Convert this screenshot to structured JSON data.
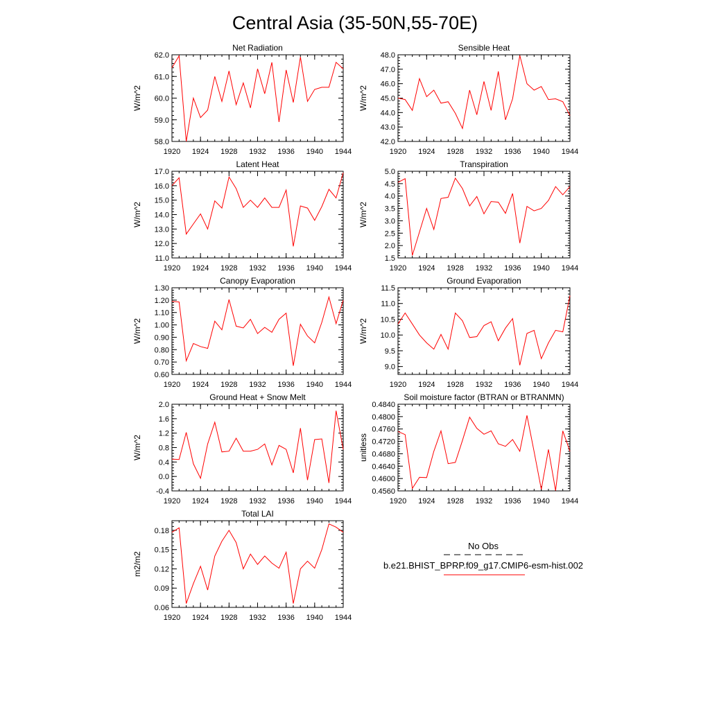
{
  "figure": {
    "title": "Central Asia (35-50N,55-70E)"
  },
  "legend": {
    "obs_label": "No Obs",
    "model_label": "b.e21.BHIST_BPRP.f09_g17.CMIP6-esm-hist.002",
    "obs_color": "#000000",
    "model_color": "#ff0000"
  },
  "colors": {
    "series": "#ff0000",
    "axis": "#000000"
  },
  "chart_data": [
    {
      "type": "line",
      "title": "Net Radiation",
      "ylabel": "W/m^2",
      "xlim": [
        1920,
        1944
      ],
      "ylim": [
        58.0,
        62.0
      ],
      "xticks": [
        1920,
        1924,
        1928,
        1932,
        1936,
        1940,
        1944
      ],
      "xtick_labels": [
        "1920",
        "1924",
        "1928",
        "1932",
        "1936",
        "1940",
        "1944"
      ],
      "yticks": [
        58.0,
        59.0,
        60.0,
        61.0,
        62.0
      ],
      "ytick_labels": [
        "58.0",
        "59.0",
        "60.0",
        "61.0",
        "62.0"
      ],
      "x": [
        1920,
        1921,
        1922,
        1923,
        1924,
        1925,
        1926,
        1927,
        1928,
        1929,
        1930,
        1931,
        1932,
        1933,
        1934,
        1935,
        1936,
        1937,
        1938,
        1939,
        1940,
        1941,
        1942,
        1943,
        1944
      ],
      "series": [
        {
          "values": [
            61.4,
            61.95,
            58.0,
            60.0,
            59.1,
            59.45,
            61.0,
            59.85,
            61.25,
            59.7,
            60.7,
            59.55,
            61.35,
            60.2,
            61.65,
            58.9,
            61.3,
            59.8,
            61.9,
            59.85,
            60.4,
            60.5,
            60.5,
            61.65,
            61.35
          ]
        }
      ]
    },
    {
      "type": "line",
      "title": "Sensible Heat",
      "ylabel": "W/m^2",
      "xlim": [
        1920,
        1944
      ],
      "ylim": [
        42.0,
        48.0
      ],
      "xticks": [
        1920,
        1924,
        1928,
        1932,
        1936,
        1940,
        1944
      ],
      "xtick_labels": [
        "1920",
        "1924",
        "1928",
        "1932",
        "1936",
        "1940",
        "1944"
      ],
      "yticks": [
        42.0,
        43.0,
        44.0,
        45.0,
        46.0,
        47.0,
        48.0
      ],
      "ytick_labels": [
        "42.0",
        "43.0",
        "44.0",
        "45.0",
        "46.0",
        "47.0",
        "48.0"
      ],
      "x": [
        1920,
        1921,
        1922,
        1923,
        1924,
        1925,
        1926,
        1927,
        1928,
        1929,
        1930,
        1931,
        1932,
        1933,
        1934,
        1935,
        1936,
        1937,
        1938,
        1939,
        1940,
        1941,
        1942,
        1943,
        1944
      ],
      "series": [
        {
          "values": [
            45.0,
            44.9,
            44.15,
            46.35,
            45.1,
            45.55,
            44.65,
            44.75,
            43.95,
            42.9,
            45.55,
            43.85,
            46.15,
            44.15,
            46.85,
            43.5,
            44.95,
            47.95,
            46.0,
            45.55,
            45.8,
            44.9,
            44.95,
            44.75,
            43.8
          ]
        }
      ]
    },
    {
      "type": "line",
      "title": "Latent Heat",
      "ylabel": "W/m^2",
      "xlim": [
        1920,
        1944
      ],
      "ylim": [
        11.0,
        17.0
      ],
      "xticks": [
        1920,
        1924,
        1928,
        1932,
        1936,
        1940,
        1944
      ],
      "xtick_labels": [
        "1920",
        "1924",
        "1928",
        "1932",
        "1936",
        "1940",
        "1944"
      ],
      "yticks": [
        11.0,
        12.0,
        13.0,
        14.0,
        15.0,
        16.0,
        17.0
      ],
      "ytick_labels": [
        "11.0",
        "12.0",
        "13.0",
        "14.0",
        "15.0",
        "16.0",
        "17.0"
      ],
      "x": [
        1920,
        1921,
        1922,
        1923,
        1924,
        1925,
        1926,
        1927,
        1928,
        1929,
        1930,
        1931,
        1932,
        1933,
        1934,
        1935,
        1936,
        1937,
        1938,
        1939,
        1940,
        1941,
        1942,
        1943,
        1944
      ],
      "series": [
        {
          "values": [
            16.0,
            16.55,
            12.65,
            13.35,
            14.05,
            13.0,
            14.95,
            14.45,
            16.6,
            15.8,
            14.5,
            15.0,
            14.5,
            15.15,
            14.5,
            14.5,
            15.7,
            11.8,
            14.6,
            14.45,
            13.6,
            14.55,
            15.75,
            15.15,
            16.9
          ]
        }
      ]
    },
    {
      "type": "line",
      "title": "Transpiration",
      "ylabel": "W/m^2",
      "xlim": [
        1920,
        1944
      ],
      "ylim": [
        1.5,
        5.0
      ],
      "xticks": [
        1920,
        1924,
        1928,
        1932,
        1936,
        1940,
        1944
      ],
      "xtick_labels": [
        "1920",
        "1924",
        "1928",
        "1932",
        "1936",
        "1940",
        "1944"
      ],
      "yticks": [
        1.5,
        2.0,
        2.5,
        3.0,
        3.5,
        4.0,
        4.5,
        5.0
      ],
      "ytick_labels": [
        "1.5",
        "2.0",
        "2.5",
        "3.0",
        "3.5",
        "4.0",
        "4.5",
        "5.0"
      ],
      "x": [
        1920,
        1921,
        1922,
        1923,
        1924,
        1925,
        1926,
        1927,
        1928,
        1929,
        1930,
        1931,
        1932,
        1933,
        1934,
        1935,
        1936,
        1937,
        1938,
        1939,
        1940,
        1941,
        1942,
        1943,
        1944
      ],
      "series": [
        {
          "values": [
            4.55,
            4.7,
            1.6,
            2.55,
            3.5,
            2.65,
            3.9,
            3.95,
            4.72,
            4.3,
            3.6,
            3.98,
            3.28,
            3.78,
            3.75,
            3.3,
            4.1,
            2.1,
            3.58,
            3.4,
            3.5,
            3.82,
            4.38,
            4.05,
            4.38
          ]
        }
      ]
    },
    {
      "type": "line",
      "title": "Canopy Evaporation",
      "ylabel": "W/m^2",
      "xlim": [
        1920,
        1944
      ],
      "ylim": [
        0.6,
        1.3
      ],
      "xticks": [
        1920,
        1924,
        1928,
        1932,
        1936,
        1940,
        1944
      ],
      "xtick_labels": [
        "1920",
        "1924",
        "1928",
        "1932",
        "1936",
        "1940",
        "1944"
      ],
      "yticks": [
        0.6,
        0.7,
        0.8,
        0.9,
        1.0,
        1.1,
        1.2,
        1.3
      ],
      "ytick_labels": [
        "0.60",
        "0.70",
        "0.80",
        "0.90",
        "1.00",
        "1.10",
        "1.20",
        "1.30"
      ],
      "x": [
        1920,
        1921,
        1922,
        1923,
        1924,
        1925,
        1926,
        1927,
        1928,
        1929,
        1930,
        1931,
        1932,
        1933,
        1934,
        1935,
        1936,
        1937,
        1938,
        1939,
        1940,
        1941,
        1942,
        1943,
        1944
      ],
      "series": [
        {
          "values": [
            1.19,
            1.185,
            0.71,
            0.85,
            0.825,
            0.81,
            1.03,
            0.96,
            1.205,
            0.99,
            0.975,
            1.045,
            0.93,
            0.98,
            0.94,
            1.045,
            1.095,
            0.67,
            1.005,
            0.91,
            0.855,
            1.02,
            1.225,
            1.01,
            1.2
          ]
        }
      ]
    },
    {
      "type": "line",
      "title": "Ground Evaporation",
      "ylabel": "W/m^2",
      "xlim": [
        1920,
        1944
      ],
      "ylim": [
        8.75,
        11.5
      ],
      "xticks": [
        1920,
        1924,
        1928,
        1932,
        1936,
        1940,
        1944
      ],
      "xtick_labels": [
        "1920",
        "1924",
        "1928",
        "1932",
        "1936",
        "1940",
        "1944"
      ],
      "yticks": [
        9.0,
        9.5,
        10.0,
        10.5,
        11.0,
        11.5
      ],
      "ytick_labels": [
        "9.0",
        "9.5",
        "10.0",
        "10.5",
        "11.0",
        "11.5"
      ],
      "x": [
        1920,
        1921,
        1922,
        1923,
        1924,
        1925,
        1926,
        1927,
        1928,
        1929,
        1930,
        1931,
        1932,
        1933,
        1934,
        1935,
        1936,
        1937,
        1938,
        1939,
        1940,
        1941,
        1942,
        1943,
        1944
      ],
      "series": [
        {
          "values": [
            10.35,
            10.7,
            10.35,
            10.0,
            9.75,
            9.55,
            10.02,
            9.55,
            10.7,
            10.45,
            9.92,
            9.95,
            10.3,
            10.42,
            9.82,
            10.22,
            10.52,
            9.04,
            10.05,
            10.15,
            9.25,
            9.75,
            10.15,
            10.1,
            11.25
          ]
        }
      ]
    },
    {
      "type": "line",
      "title": "Ground Heat + Snow Melt",
      "ylabel": "W/m^2",
      "xlim": [
        1920,
        1944
      ],
      "ylim": [
        -0.4,
        2.0
      ],
      "xticks": [
        1920,
        1924,
        1928,
        1932,
        1936,
        1940,
        1944
      ],
      "xtick_labels": [
        "1920",
        "1924",
        "1928",
        "1932",
        "1936",
        "1940",
        "1944"
      ],
      "yticks": [
        -0.4,
        0.0,
        0.4,
        0.8,
        1.2,
        1.6,
        2.0
      ],
      "ytick_labels": [
        "-0.4",
        "0.0",
        "0.4",
        "0.8",
        "1.2",
        "1.6",
        "2.0"
      ],
      "x": [
        1920,
        1921,
        1922,
        1923,
        1924,
        1925,
        1926,
        1927,
        1928,
        1929,
        1930,
        1931,
        1932,
        1933,
        1934,
        1935,
        1936,
        1937,
        1938,
        1939,
        1940,
        1941,
        1942,
        1943,
        1944
      ],
      "series": [
        {
          "values": [
            0.48,
            0.47,
            1.22,
            0.35,
            -0.05,
            0.9,
            1.5,
            0.68,
            0.7,
            1.06,
            0.7,
            0.7,
            0.75,
            0.9,
            0.32,
            0.86,
            0.75,
            0.1,
            1.34,
            -0.1,
            1.02,
            1.04,
            -0.18,
            1.82,
            0.75
          ]
        }
      ]
    },
    {
      "type": "line",
      "title": "Soil moisture factor (BTRAN or BTRANMN)",
      "ylabel": "unitless",
      "xlim": [
        1920,
        1944
      ],
      "ylim": [
        0.456,
        0.484
      ],
      "xticks": [
        1920,
        1924,
        1928,
        1932,
        1936,
        1940,
        1944
      ],
      "xtick_labels": [
        "1920",
        "1924",
        "1928",
        "1932",
        "1936",
        "1940",
        "1944"
      ],
      "yticks": [
        0.456,
        0.46,
        0.464,
        0.468,
        0.472,
        0.476,
        0.48,
        0.484
      ],
      "ytick_labels": [
        "0.4560",
        "0.4600",
        "0.4640",
        "0.4680",
        "0.4720",
        "0.4760",
        "0.4800",
        "0.4840"
      ],
      "x": [
        1920,
        1921,
        1922,
        1923,
        1924,
        1925,
        1926,
        1927,
        1928,
        1929,
        1930,
        1931,
        1932,
        1933,
        1934,
        1935,
        1936,
        1937,
        1938,
        1939,
        1940,
        1941,
        1942,
        1943,
        1944
      ],
      "series": [
        {
          "values": [
            0.4752,
            0.4742,
            0.4568,
            0.4604,
            0.4603,
            0.4688,
            0.4754,
            0.4648,
            0.4652,
            0.4723,
            0.4798,
            0.4762,
            0.4743,
            0.4754,
            0.4712,
            0.4704,
            0.4726,
            0.4688,
            0.4804,
            0.4687,
            0.4565,
            0.4694,
            0.4561,
            0.4754,
            0.4688
          ]
        }
      ]
    },
    {
      "type": "line",
      "title": "Total LAI",
      "ylabel": "m2/m2",
      "xlim": [
        1920,
        1944
      ],
      "ylim": [
        0.06,
        0.195
      ],
      "xticks": [
        1920,
        1924,
        1928,
        1932,
        1936,
        1940,
        1944
      ],
      "xtick_labels": [
        "1920",
        "1924",
        "1928",
        "1932",
        "1936",
        "1940",
        "1944"
      ],
      "yticks": [
        0.06,
        0.09,
        0.12,
        0.15,
        0.18
      ],
      "ytick_labels": [
        "0.06",
        "0.09",
        "0.12",
        "0.15",
        "0.18"
      ],
      "x": [
        1920,
        1921,
        1922,
        1923,
        1924,
        1925,
        1926,
        1927,
        1928,
        1929,
        1930,
        1931,
        1932,
        1933,
        1934,
        1935,
        1936,
        1937,
        1938,
        1939,
        1940,
        1941,
        1942,
        1943,
        1944
      ],
      "series": [
        {
          "values": [
            0.177,
            0.184,
            0.066,
            0.097,
            0.124,
            0.087,
            0.14,
            0.163,
            0.18,
            0.161,
            0.12,
            0.143,
            0.127,
            0.14,
            0.129,
            0.121,
            0.146,
            0.066,
            0.12,
            0.132,
            0.121,
            0.15,
            0.19,
            0.185,
            0.177
          ]
        }
      ]
    }
  ]
}
